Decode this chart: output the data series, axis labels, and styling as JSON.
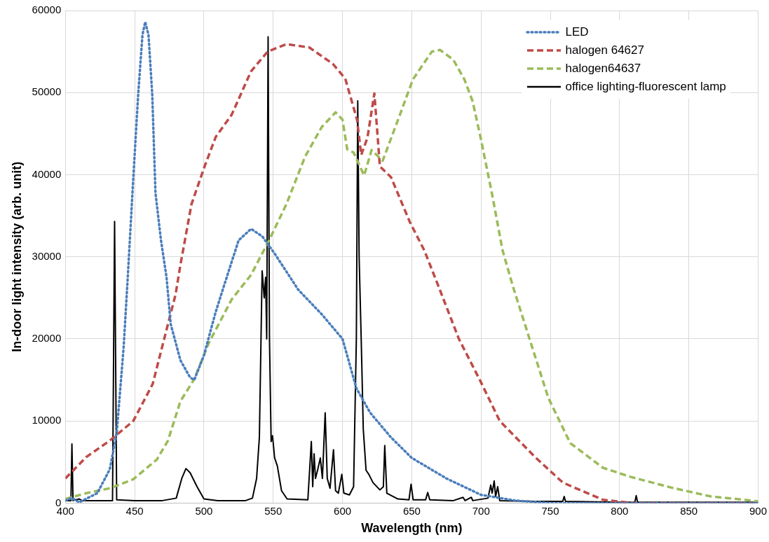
{
  "chart_data": {
    "type": "line",
    "xlabel": "Wavelength (nm)",
    "ylabel": "In-door light intensity (arb. unit)",
    "xlim": [
      400,
      900
    ],
    "xticks": [
      400,
      450,
      500,
      550,
      600,
      650,
      700,
      750,
      800,
      850,
      900
    ],
    "ylim": [
      0,
      60000
    ],
    "yticks": [
      0,
      10000,
      20000,
      30000,
      40000,
      50000,
      60000
    ],
    "grid": true,
    "legend": "top right",
    "marker": "none",
    "series": [
      {
        "name": "LED",
        "color": "#4a7ebb",
        "line_style": "dotted",
        "x": [
          400,
          404.7,
          410,
          423,
          432,
          437,
          442,
          445,
          449,
          452.5,
          455.6,
          457.6,
          460,
          462.7,
          465,
          469,
          473,
          476,
          483,
          490,
          493,
          500,
          508.5,
          517,
          525,
          534,
          542,
          551,
          568,
          585,
          600,
          610,
          620,
          635,
          650,
          675,
          700,
          725,
          750,
          800,
          900
        ],
        "values": [
          300,
          600,
          100,
          1200,
          4100,
          8500,
          18900,
          27500,
          39600,
          49700,
          57000,
          58600,
          57000,
          49700,
          37800,
          32000,
          27500,
          21800,
          17400,
          15300,
          15000,
          18000,
          23300,
          27800,
          32000,
          33400,
          32500,
          30400,
          26000,
          23000,
          20000,
          14000,
          11000,
          8000,
          5500,
          3000,
          1000,
          300,
          0,
          0,
          0
        ]
      },
      {
        "name": "halogen 64627",
        "color": "#be4b48",
        "line_style": "dashed",
        "x": [
          400,
          415,
          432,
          449,
          463,
          471,
          479.5,
          483,
          491,
          500,
          508.5,
          520,
          534,
          546,
          559.5,
          576,
          593,
          602,
          610.5,
          613.5,
          618,
          623,
          627,
          635,
          648.7,
          659,
          668.6,
          684,
          699.7,
          713.5,
          739,
          759,
          788,
          810,
          850,
          900
        ],
        "values": [
          3000,
          5600,
          7600,
          10000,
          14500,
          19800,
          25400,
          29000,
          36400,
          40800,
          44600,
          47300,
          52600,
          55000,
          55900,
          55500,
          53500,
          51700,
          46700,
          42400,
          44500,
          49900,
          41000,
          39700,
          34200,
          30800,
          26700,
          20000,
          14800,
          10000,
          5600,
          2500,
          400,
          0,
          0,
          0
        ]
      },
      {
        "name": "halogen64637",
        "color": "#9bbb59",
        "line_style": "dashed",
        "x": [
          400,
          415,
          432,
          449,
          466,
          474,
          483,
          493,
          503.5,
          520,
          534,
          547,
          559.5,
          573,
          585,
          595,
          600,
          603.4,
          608,
          615.6,
          621,
          629,
          641,
          650.8,
          664.5,
          670.4,
          680,
          688,
          694,
          699.7,
          708,
          715.5,
          723,
          735,
          748.6,
          764.4,
          788,
          807.7,
          837,
          866,
          896,
          900
        ],
        "values": [
          500,
          1200,
          1800,
          2900,
          5300,
          7600,
          12400,
          15100,
          19500,
          24800,
          27800,
          32000,
          36400,
          42200,
          45800,
          47600,
          46700,
          43100,
          42700,
          39900,
          43000,
          41700,
          47100,
          51600,
          55000,
          55200,
          54000,
          51600,
          48900,
          44500,
          37600,
          30800,
          26400,
          20000,
          12800,
          7300,
          4300,
          3200,
          1900,
          800,
          300,
          200
        ]
      },
      {
        "name": "office lighting-fluorescent lamp",
        "color": "#000000",
        "line_style": "solid",
        "x": [
          400,
          404,
          404.7,
          405.5,
          410,
          412,
          434,
          435.5,
          437,
          450,
          470,
          480,
          484,
          487,
          490,
          495,
          500,
          510,
          530,
          535,
          538,
          540,
          542,
          543.5,
          544.5,
          545.3,
          546.3,
          547.3,
          548.5,
          549.5,
          551,
          553,
          556,
          560,
          575,
          577.5,
          578.5,
          579.5,
          580.5,
          582,
          584,
          585.5,
          587.5,
          589,
          591,
          593.5,
          595,
          597,
          599.5,
          601,
          605,
          608,
          610,
          611,
          612,
          613.5,
          615,
          617,
          619,
          622,
          627,
          629.5,
          630.5,
          632,
          640,
          648,
          649.5,
          651,
          660,
          661.5,
          663,
          680,
          687,
          688.5,
          693,
          694,
          705,
          707,
          708,
          709.5,
          710.5,
          712,
          713.5,
          740,
          759,
          760,
          761,
          800,
          811,
          812,
          813,
          850,
          900
        ],
        "values": [
          300,
          300,
          7200,
          300,
          500,
          300,
          300,
          34300,
          400,
          300,
          300,
          600,
          3000,
          4200,
          3700,
          2000,
          500,
          300,
          300,
          600,
          3000,
          8000,
          28300,
          25000,
          27500,
          20000,
          56800,
          20000,
          7500,
          8200,
          5500,
          4500,
          1500,
          500,
          400,
          7500,
          2000,
          6000,
          3000,
          4000,
          5500,
          3000,
          11000,
          3000,
          1800,
          6500,
          1500,
          1200,
          3500,
          1200,
          1000,
          2000,
          20000,
          49000,
          30000,
          20000,
          9000,
          4000,
          3500,
          2500,
          1600,
          2000,
          7000,
          1200,
          500,
          400,
          2300,
          400,
          400,
          1300,
          400,
          300,
          700,
          300,
          700,
          300,
          600,
          2200,
          1200,
          2700,
          800,
          2000,
          300,
          200,
          200,
          800,
          200,
          100,
          100,
          900,
          100,
          100,
          100
        ]
      }
    ]
  }
}
